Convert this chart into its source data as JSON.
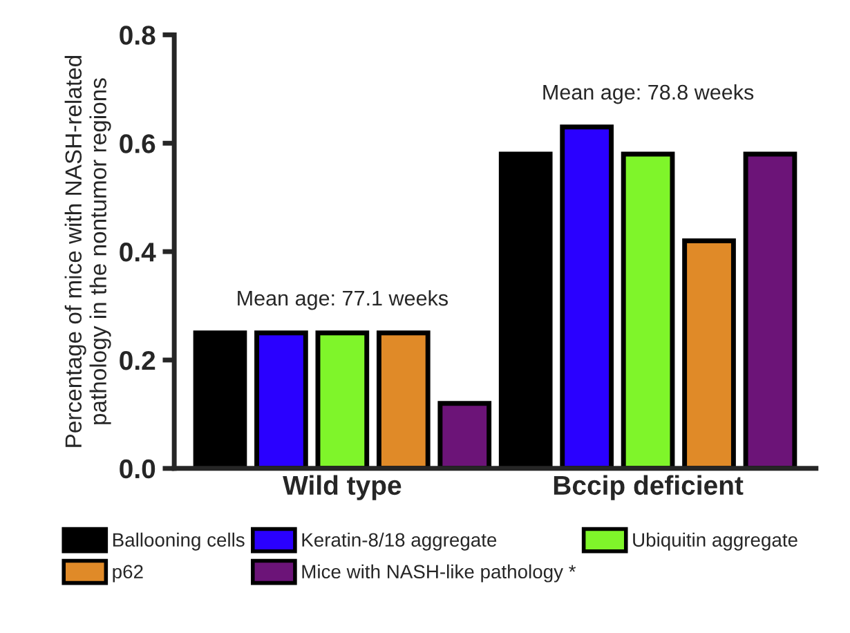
{
  "chart_data": {
    "type": "bar",
    "ylabel": "Percentage of mice with NASH-related\npathology in the nontumor regions",
    "categories": [
      "Wild type",
      "Bccip deficient"
    ],
    "series": [
      {
        "name": "Ballooning cells",
        "color": "#000000",
        "values": [
          0.25,
          0.58
        ]
      },
      {
        "name": "Keratin-8/18 aggregate",
        "color": "#2a00ff",
        "values": [
          0.25,
          0.63
        ]
      },
      {
        "name": "Ubiquitin aggregate",
        "color": "#7ff52a",
        "values": [
          0.25,
          0.58
        ]
      },
      {
        "name": "p62",
        "color": "#e08a28",
        "values": [
          0.25,
          0.42
        ]
      },
      {
        "name": "Mice with NASH-like pathology *",
        "color": "#6c1478",
        "values": [
          0.12,
          0.58
        ]
      }
    ],
    "annotations": [
      "Mean age: 77.1 weeks",
      "Mean age: 78.8 weeks"
    ],
    "ylim": [
      0,
      0.8
    ],
    "yticks": [
      {
        "value": 0,
        "label": "0.0"
      },
      0.2,
      0.4,
      0.6,
      0.8
    ],
    "grid": false,
    "legend": "bottom"
  }
}
